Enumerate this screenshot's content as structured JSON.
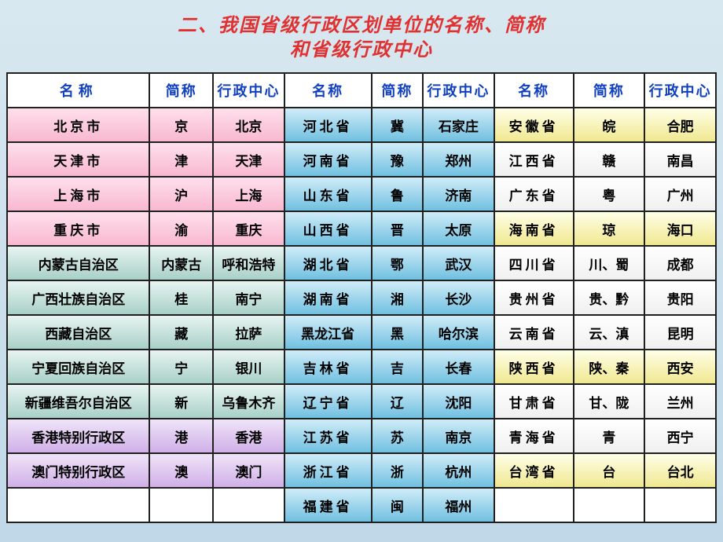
{
  "title_line1": "二、我国省级行政区划单位的名称、简称",
  "title_line2": "和省级行政中心",
  "headers": {
    "name": "名称",
    "abbr": "简称",
    "capital": "行政中心"
  },
  "colors": {
    "pink": "#f8b8d0",
    "teal": "#a8d0c8",
    "purple": "#d0b0e8",
    "blue": "#70c0e0",
    "yellow": "#f0e890",
    "white": "#ffffff",
    "title": "#e03030",
    "header_text": "#1040c0",
    "border": "#202020"
  },
  "rows": [
    {
      "c1": {
        "name": "北京市",
        "abbr": "京",
        "cap": "北京",
        "cls": "pink"
      },
      "c2": {
        "name": "河北省",
        "abbr": "冀",
        "cap": "石家庄",
        "cls": "blue"
      },
      "c3": {
        "name": "安徽省",
        "abbr": "皖",
        "cap": "合肥",
        "cls": "yellow"
      }
    },
    {
      "c1": {
        "name": "天津市",
        "abbr": "津",
        "cap": "天津",
        "cls": "pink"
      },
      "c2": {
        "name": "河南省",
        "abbr": "豫",
        "cap": "郑州",
        "cls": "blue"
      },
      "c3": {
        "name": "江西省",
        "abbr": "赣",
        "cap": "南昌",
        "cls": "wht"
      }
    },
    {
      "c1": {
        "name": "上海市",
        "abbr": "沪",
        "cap": "上海",
        "cls": "pink"
      },
      "c2": {
        "name": "山东省",
        "abbr": "鲁",
        "cap": "济南",
        "cls": "blue"
      },
      "c3": {
        "name": "广东省",
        "abbr": "粤",
        "cap": "广州",
        "cls": "wht"
      }
    },
    {
      "c1": {
        "name": "重庆市",
        "abbr": "渝",
        "cap": "重庆",
        "cls": "pink"
      },
      "c2": {
        "name": "山西省",
        "abbr": "晋",
        "cap": "太原",
        "cls": "blue"
      },
      "c3": {
        "name": "海南省",
        "abbr": "琼",
        "cap": "海口",
        "cls": "yellow"
      }
    },
    {
      "c1": {
        "name": "内蒙古自治区",
        "abbr": "内蒙古",
        "cap": "呼和浩特",
        "cls": "teal"
      },
      "c2": {
        "name": "湖北省",
        "abbr": "鄂",
        "cap": "武汉",
        "cls": "blue"
      },
      "c3": {
        "name": "四川省",
        "abbr": "川、蜀",
        "cap": "成都",
        "cls": "wht"
      }
    },
    {
      "c1": {
        "name": "广西壮族自治区",
        "abbr": "桂",
        "cap": "南宁",
        "cls": "teal"
      },
      "c2": {
        "name": "湖南省",
        "abbr": "湘",
        "cap": "长沙",
        "cls": "blue"
      },
      "c3": {
        "name": "贵州省",
        "abbr": "贵、黔",
        "cap": "贵阳",
        "cls": "wht"
      }
    },
    {
      "c1": {
        "name": "西藏自治区",
        "abbr": "藏",
        "cap": "拉萨",
        "cls": "teal"
      },
      "c2": {
        "name": "黑龙江省",
        "abbr": "黑",
        "cap": "哈尔滨",
        "cls": "blue"
      },
      "c3": {
        "name": "云南省",
        "abbr": "云、滇",
        "cap": "昆明",
        "cls": "wht"
      }
    },
    {
      "c1": {
        "name": "宁夏回族自治区",
        "abbr": "宁",
        "cap": "银川",
        "cls": "teal"
      },
      "c2": {
        "name": "吉林省",
        "abbr": "吉",
        "cap": "长春",
        "cls": "blue"
      },
      "c3": {
        "name": "陕西省",
        "abbr": "陕、秦",
        "cap": "西安",
        "cls": "yellow"
      }
    },
    {
      "c1": {
        "name": "新疆维吾尔自治区",
        "abbr": "新",
        "cap": "乌鲁木齐",
        "cls": "teal"
      },
      "c2": {
        "name": "辽宁省",
        "abbr": "辽",
        "cap": "沈阳",
        "cls": "blue"
      },
      "c3": {
        "name": "甘肃省",
        "abbr": "甘、陇",
        "cap": "兰州",
        "cls": "wht"
      }
    },
    {
      "c1": {
        "name": "香港特别行政区",
        "abbr": "港",
        "cap": "香港",
        "cls": "purple"
      },
      "c2": {
        "name": "江苏省",
        "abbr": "苏",
        "cap": "南京",
        "cls": "blue"
      },
      "c3": {
        "name": "青海省",
        "abbr": "青",
        "cap": "西宁",
        "cls": "wht"
      }
    },
    {
      "c1": {
        "name": "澳门特别行政区",
        "abbr": "澳",
        "cap": "澳门",
        "cls": "purple"
      },
      "c2": {
        "name": "浙江省",
        "abbr": "浙",
        "cap": "杭州",
        "cls": "blue"
      },
      "c3": {
        "name": "台湾省",
        "abbr": "台",
        "cap": "台北",
        "cls": "yellow"
      }
    },
    {
      "c1": {
        "name": "",
        "abbr": "",
        "cap": "",
        "cls": "white"
      },
      "c2": {
        "name": "福建省",
        "abbr": "闽",
        "cap": "福州",
        "cls": "blue"
      },
      "c3": {
        "name": "",
        "abbr": "",
        "cap": "",
        "cls": "white"
      }
    }
  ]
}
